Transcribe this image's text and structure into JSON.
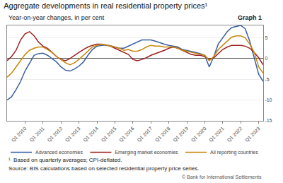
{
  "chart_data": {
    "type": "line",
    "title": "Aggregate developments in real residential property prices¹",
    "subtitle": "Year-on-year changes, in per cent",
    "annotations": [
      "Graph 1",
      "¹  Based on quarterly averages; CPI-deflated.",
      "Source: BIS calculations based on selected residential property price series.",
      "© Bank for International Settlements"
    ],
    "categories": [
      null,
      null,
      null,
      null,
      "Q1 2010",
      null,
      null,
      null,
      "Q1 2011",
      null,
      null,
      null,
      "Q1 2012",
      null,
      null,
      null,
      "Q1 2013",
      null,
      null,
      null,
      "Q1 2014",
      null,
      null,
      null,
      "Q1 2015",
      null,
      null,
      null,
      "Q1 2016",
      null,
      null,
      null,
      "Q1 2017",
      null,
      null,
      null,
      "Q1 2018",
      null,
      null,
      null,
      "Q1 2019",
      null,
      null,
      null,
      "Q1 2020",
      null,
      null,
      null,
      "Q1 2021",
      null,
      null,
      null,
      "Q1 2022",
      null,
      null,
      null,
      "Q1 2023",
      null
    ],
    "series": [
      {
        "name": "Advanced economies",
        "color": "#3a5fa0",
        "values": [
          -10.0,
          -9.2,
          -7.5,
          -5.5,
          -3.0,
          -1.0,
          0.8,
          1.2,
          1.3,
          0.8,
          0.0,
          -0.8,
          -2.0,
          -2.8,
          -3.0,
          -2.5,
          -1.8,
          -0.8,
          0.8,
          2.2,
          3.0,
          3.2,
          3.3,
          3.1,
          2.8,
          2.5,
          2.5,
          3.0,
          3.5,
          4.0,
          4.5,
          4.5,
          4.5,
          4.2,
          3.8,
          3.5,
          3.2,
          3.0,
          2.8,
          2.2,
          2.0,
          1.8,
          1.5,
          1.2,
          0.8,
          -2.0,
          0.5,
          3.5,
          5.0,
          6.5,
          7.5,
          7.8,
          8.0,
          7.2,
          4.2,
          0.2,
          -3.8,
          -5.5
        ]
      },
      {
        "name": "Emerging market economies",
        "color": "#9b2020",
        "values": [
          -0.5,
          0.5,
          2.0,
          4.5,
          6.0,
          6.5,
          5.5,
          4.0,
          3.0,
          2.5,
          1.5,
          0.5,
          -0.2,
          -0.5,
          0.0,
          0.8,
          1.5,
          2.2,
          2.8,
          3.2,
          3.5,
          3.5,
          3.3,
          3.0,
          2.5,
          2.0,
          1.5,
          1.0,
          -0.2,
          -0.5,
          -0.2,
          0.2,
          0.8,
          1.2,
          1.5,
          2.0,
          2.5,
          2.8,
          2.5,
          2.0,
          1.5,
          1.0,
          0.8,
          0.8,
          0.5,
          -0.2,
          0.2,
          1.2,
          2.2,
          2.8,
          3.2,
          3.2,
          3.2,
          3.0,
          2.5,
          1.5,
          0.2,
          -1.5
        ]
      },
      {
        "name": "All reporting countries",
        "color": "#c8860a",
        "values": [
          -4.5,
          -3.5,
          -2.0,
          -0.5,
          1.0,
          2.0,
          2.5,
          2.8,
          2.8,
          2.2,
          1.5,
          0.5,
          -0.2,
          -1.0,
          -1.5,
          -1.0,
          -0.2,
          0.8,
          1.8,
          2.8,
          3.2,
          3.5,
          3.3,
          3.0,
          2.8,
          2.5,
          2.0,
          2.2,
          1.8,
          1.8,
          2.2,
          2.8,
          3.2,
          3.0,
          3.0,
          2.8,
          2.8,
          2.8,
          2.5,
          2.0,
          1.8,
          1.5,
          1.2,
          1.0,
          0.8,
          -0.5,
          0.5,
          2.2,
          3.2,
          4.2,
          5.2,
          5.5,
          5.5,
          5.0,
          3.5,
          1.5,
          -2.0,
          -3.5
        ]
      }
    ],
    "ylim": [
      -15,
      8
    ],
    "yticks": [
      -15,
      -10,
      -5,
      0,
      5
    ],
    "grid": true,
    "legend": "bottom left"
  }
}
